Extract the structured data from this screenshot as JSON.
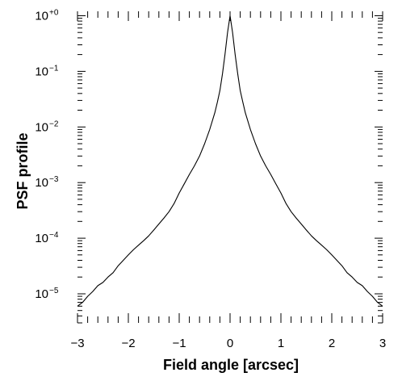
{
  "chart_data": {
    "type": "line",
    "title": "",
    "xlabel": "Field angle [arcsec]",
    "ylabel": "PSF profile",
    "xlim": [
      -3.0,
      3.0
    ],
    "ylim": [
      3e-06,
      1.2
    ],
    "xscale": "linear",
    "yscale": "log",
    "grid": false,
    "legend": "none",
    "x_ticks": [
      -3,
      -2,
      -1,
      0,
      1,
      2,
      3
    ],
    "x_tick_labels": [
      "−3",
      "−2",
      "−1",
      "0",
      "1",
      "2",
      "3"
    ],
    "y_ticks": [
      1e-05,
      0.0001,
      0.001,
      0.01,
      0.1,
      1
    ],
    "y_tick_labels": [
      {
        "base": "10",
        "exp": "−5"
      },
      {
        "base": "10",
        "exp": "−4"
      },
      {
        "base": "10",
        "exp": "−3"
      },
      {
        "base": "10",
        "exp": "−2"
      },
      {
        "base": "10",
        "exp": "−1"
      },
      {
        "base": "10",
        "exp": "+0"
      }
    ],
    "series": [
      {
        "color": "#000000",
        "x": [
          -3.0,
          -2.9,
          -2.8,
          -2.7,
          -2.6,
          -2.5,
          -2.4,
          -2.3,
          -2.2,
          -2.1,
          -2.0,
          -1.9,
          -1.8,
          -1.7,
          -1.6,
          -1.5,
          -1.4,
          -1.3,
          -1.2,
          -1.1,
          -1.0,
          -0.9,
          -0.8,
          -0.7,
          -0.6,
          -0.5,
          -0.4,
          -0.3,
          -0.25,
          -0.2,
          -0.15,
          -0.1,
          -0.05,
          0.0,
          0.05,
          0.1,
          0.15,
          0.2,
          0.25,
          0.3,
          0.4,
          0.5,
          0.6,
          0.7,
          0.8,
          0.9,
          1.0,
          1.1,
          1.2,
          1.3,
          1.4,
          1.5,
          1.6,
          1.7,
          1.8,
          1.9,
          2.0,
          2.1,
          2.2,
          2.3,
          2.4,
          2.5,
          2.6,
          2.7,
          2.8,
          2.9,
          3.0
        ],
        "y": [
          6e-06,
          7e-06,
          9e-06,
          1.1e-05,
          1.4e-05,
          1.6e-05,
          2e-05,
          2.4e-05,
          3.2e-05,
          4e-05,
          5e-05,
          6.2e-05,
          7.5e-05,
          9e-05,
          0.00011,
          0.00014,
          0.00018,
          0.00023,
          0.0003,
          0.00042,
          0.00065,
          0.00095,
          0.0014,
          0.002,
          0.003,
          0.005,
          0.009,
          0.018,
          0.028,
          0.045,
          0.09,
          0.2,
          0.5,
          1.0,
          0.5,
          0.2,
          0.09,
          0.045,
          0.028,
          0.018,
          0.009,
          0.005,
          0.003,
          0.002,
          0.0014,
          0.00095,
          0.00065,
          0.00042,
          0.0003,
          0.00023,
          0.00018,
          0.00014,
          0.00011,
          9e-05,
          7.5e-05,
          6.2e-05,
          5e-05,
          4e-05,
          3.2e-05,
          2.4e-05,
          2e-05,
          1.6e-05,
          1.4e-05,
          1.1e-05,
          9e-06,
          7e-06,
          6e-06
        ]
      }
    ]
  }
}
